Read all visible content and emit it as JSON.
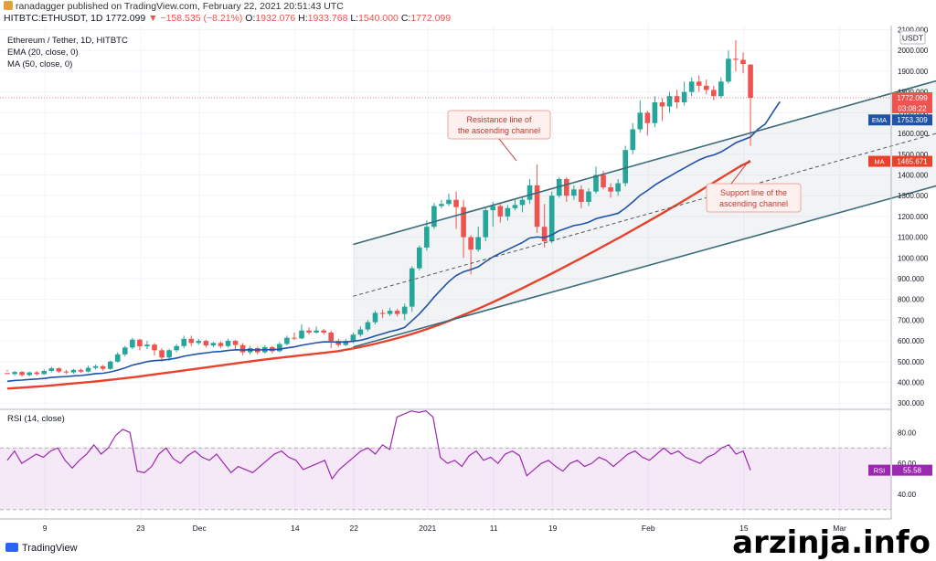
{
  "header": {
    "line1": "ranadagger published on TradingView.com, February 22, 2021 20:51:43 UTC",
    "symbol": "HITBTC:ETHUSDT, 1D",
    "last": "1772.099",
    "change": "▼ −158.535 (−8.21%)",
    "o_label": "O:",
    "o": "1932.076",
    "h_label": "H:",
    "h": "1933.768",
    "l_label": "L:",
    "l": "1540.000",
    "c_label": "C:",
    "c": "1772.099"
  },
  "legend": {
    "title": "Ethereum / Tether, 1D, HITBTC",
    "ema": "EMA (20, close, 0)",
    "ma": "MA (50, close, 0)",
    "rsi": "RSI (14, close)"
  },
  "currency": "USDT",
  "annotations": {
    "resistance": [
      "Resistance line of",
      "the ascending channel"
    ],
    "support": [
      "Support line of the",
      "ascending channel"
    ]
  },
  "price_tags": {
    "last": "1772.099",
    "countdown": "03:08:22",
    "ema_label": "EMA",
    "ema": "1753.309",
    "ma_label": "MA",
    "ma": "1465.671",
    "rsi_label": "RSI",
    "rsi": "55.58"
  },
  "chart_data": {
    "type": "candlestick",
    "x_ticks": [
      "9",
      "23",
      "Dec",
      "14",
      "22",
      "2021",
      "11",
      "19",
      "Feb",
      "15",
      "Mar"
    ],
    "y_ticks": [
      "300.000",
      "400.000",
      "500.000",
      "600.000",
      "700.000",
      "800.000",
      "900.000",
      "1000.000",
      "1100.000",
      "1200.000",
      "1300.000",
      "1400.000",
      "1500.000",
      "1600.000",
      "1700.000",
      "1800.000",
      "1900.000",
      "2000.000",
      "2100.000"
    ],
    "y_range": [
      270,
      2120
    ],
    "rsi_ticks": [
      "40.00",
      "60.00",
      "80.00"
    ],
    "rsi_range": [
      24,
      95
    ],
    "rsi_band": [
      30,
      70
    ],
    "colors": {
      "up": "#26a69a",
      "down": "#ef5350",
      "ema": "#1e53a8",
      "ma": "#e8412c",
      "rsi": "#9c27b0",
      "channel": "#3a6b78"
    },
    "candles": [
      [
        445,
        440,
        452,
        460
      ],
      [
        440,
        450,
        432,
        455
      ],
      [
        450,
        435,
        428,
        455
      ],
      [
        435,
        448,
        430,
        452
      ],
      [
        448,
        440,
        433,
        455
      ],
      [
        440,
        455,
        436,
        462
      ],
      [
        455,
        468,
        448,
        475
      ],
      [
        468,
        452,
        445,
        472
      ],
      [
        452,
        448,
        440,
        460
      ],
      [
        448,
        460,
        442,
        465
      ],
      [
        460,
        452,
        445,
        466
      ],
      [
        452,
        470,
        448,
        480
      ],
      [
        470,
        478,
        462,
        486
      ],
      [
        478,
        465,
        456,
        484
      ],
      [
        465,
        500,
        460,
        505
      ],
      [
        500,
        535,
        495,
        545
      ],
      [
        535,
        568,
        525,
        576
      ],
      [
        568,
        606,
        560,
        615
      ],
      [
        606,
        574,
        555,
        610
      ],
      [
        574,
        582,
        560,
        600
      ],
      [
        582,
        555,
        530,
        590
      ],
      [
        555,
        520,
        500,
        565
      ],
      [
        520,
        555,
        505,
        562
      ],
      [
        555,
        575,
        545,
        585
      ],
      [
        575,
        610,
        565,
        625
      ],
      [
        610,
        590,
        575,
        625
      ],
      [
        590,
        600,
        582,
        610
      ],
      [
        600,
        578,
        568,
        605
      ],
      [
        578,
        590,
        570,
        595
      ],
      [
        590,
        575,
        565,
        598
      ],
      [
        575,
        600,
        570,
        610
      ],
      [
        600,
        580,
        560,
        605
      ],
      [
        580,
        545,
        530,
        590
      ],
      [
        545,
        565,
        535,
        575
      ],
      [
        565,
        545,
        535,
        572
      ],
      [
        545,
        570,
        538,
        580
      ],
      [
        570,
        550,
        540,
        575
      ],
      [
        550,
        585,
        545,
        595
      ],
      [
        585,
        615,
        578,
        625
      ],
      [
        615,
        612,
        605,
        640
      ],
      [
        612,
        650,
        608,
        680
      ],
      [
        650,
        640,
        630,
        665
      ],
      [
        640,
        650,
        635,
        670
      ],
      [
        650,
        640,
        630,
        658
      ],
      [
        640,
        600,
        565,
        650
      ],
      [
        600,
        580,
        570,
        610
      ],
      [
        580,
        600,
        575,
        610
      ],
      [
        600,
        630,
        590,
        640
      ],
      [
        630,
        655,
        620,
        670
      ],
      [
        655,
        690,
        645,
        700
      ],
      [
        690,
        735,
        680,
        745
      ],
      [
        735,
        730,
        710,
        750
      ],
      [
        730,
        745,
        720,
        760
      ],
      [
        745,
        730,
        718,
        755
      ],
      [
        730,
        765,
        700,
        780
      ],
      [
        765,
        950,
        740,
        960
      ],
      [
        950,
        1050,
        940,
        1060
      ],
      [
        1050,
        1150,
        1035,
        1180
      ],
      [
        1150,
        1250,
        1140,
        1265
      ],
      [
        1250,
        1260,
        1240,
        1280
      ],
      [
        1260,
        1280,
        1250,
        1310
      ],
      [
        1280,
        1245,
        1140,
        1320
      ],
      [
        1245,
        1100,
        1000,
        1280
      ],
      [
        1100,
        1040,
        920,
        1110
      ],
      [
        1040,
        1100,
        1030,
        1150
      ],
      [
        1100,
        1230,
        1080,
        1240
      ],
      [
        1230,
        1250,
        1150,
        1270
      ],
      [
        1250,
        1200,
        1170,
        1260
      ],
      [
        1200,
        1240,
        1180,
        1255
      ],
      [
        1240,
        1255,
        1230,
        1280
      ],
      [
        1255,
        1280,
        1220,
        1290
      ],
      [
        1280,
        1350,
        1260,
        1380
      ],
      [
        1350,
        1150,
        1120,
        1450
      ],
      [
        1150,
        1080,
        1050,
        1260
      ],
      [
        1080,
        1300,
        1070,
        1320
      ],
      [
        1300,
        1380,
        1290,
        1390
      ],
      [
        1380,
        1300,
        1270,
        1390
      ],
      [
        1300,
        1330,
        1280,
        1350
      ],
      [
        1330,
        1270,
        1240,
        1350
      ],
      [
        1270,
        1320,
        1250,
        1335
      ],
      [
        1320,
        1400,
        1310,
        1440
      ],
      [
        1400,
        1340,
        1330,
        1420
      ],
      [
        1340,
        1320,
        1290,
        1360
      ],
      [
        1320,
        1360,
        1300,
        1380
      ],
      [
        1360,
        1520,
        1345,
        1540
      ],
      [
        1520,
        1620,
        1500,
        1650
      ],
      [
        1620,
        1700,
        1605,
        1760
      ],
      [
        1700,
        1650,
        1590,
        1710
      ],
      [
        1650,
        1750,
        1630,
        1780
      ],
      [
        1750,
        1730,
        1660,
        1770
      ],
      [
        1730,
        1780,
        1700,
        1800
      ],
      [
        1780,
        1750,
        1720,
        1810
      ],
      [
        1750,
        1800,
        1735,
        1850
      ],
      [
        1800,
        1850,
        1780,
        1870
      ],
      [
        1850,
        1830,
        1800,
        1880
      ],
      [
        1830,
        1810,
        1790,
        1860
      ],
      [
        1810,
        1780,
        1760,
        1830
      ],
      [
        1780,
        1850,
        1770,
        1870
      ],
      [
        1850,
        1960,
        1840,
        2000
      ],
      [
        1960,
        1955,
        1900,
        2050
      ],
      [
        1955,
        1935,
        1890,
        1990
      ],
      [
        1932.076,
        1772.099,
        1540,
        1933.768
      ]
    ],
    "ema": [
      405,
      409,
      411,
      414,
      416,
      419,
      424,
      426,
      428,
      431,
      433,
      437,
      442,
      444,
      450,
      459,
      470,
      483,
      491,
      500,
      505,
      507,
      511,
      517,
      526,
      532,
      538,
      542,
      547,
      549,
      554,
      557,
      556,
      557,
      556,
      558,
      557,
      560,
      566,
      571,
      579,
      585,
      591,
      595,
      595,
      594,
      595,
      598,
      603,
      612,
      624,
      634,
      645,
      653,
      665,
      697,
      730,
      769,
      811,
      849,
      886,
      915,
      933,
      944,
      957,
      982,
      1005,
      1023,
      1040,
      1057,
      1074,
      1096,
      1101,
      1098,
      1111,
      1131,
      1143,
      1156,
      1162,
      1172,
      1189,
      1198,
      1206,
      1215,
      1240,
      1270,
      1302,
      1325,
      1351,
      1373,
      1393,
      1414,
      1433,
      1453,
      1472,
      1487,
      1496,
      1511,
      1532,
      1555,
      1569,
      1583,
      1620,
      1645,
      1700,
      1753.309
    ],
    "ma": [
      370,
      373,
      376,
      379,
      382,
      386,
      390,
      394,
      398,
      402,
      406,
      411,
      416,
      421,
      426,
      432,
      438,
      444,
      450,
      456,
      462,
      468,
      474,
      480,
      486,
      492,
      498,
      504,
      510,
      515,
      520,
      525,
      530,
      535,
      540,
      545,
      550,
      558,
      566,
      575,
      585,
      596,
      607,
      619,
      632,
      646,
      661,
      677,
      694,
      712,
      730,
      749,
      768,
      788,
      809,
      830,
      851,
      873,
      895,
      917,
      940,
      963,
      986,
      1009,
      1033,
      1057,
      1081,
      1105,
      1130,
      1155,
      1180,
      1205,
      1231,
      1257,
      1283,
      1310,
      1337,
      1364,
      1391,
      1418,
      1445,
      1465.671
    ],
    "rsi": [
      62,
      68,
      60,
      63,
      66,
      64,
      68,
      70,
      62,
      57,
      62,
      66,
      72,
      66,
      70,
      78,
      82,
      80,
      55,
      54,
      58,
      66,
      70,
      63,
      60,
      65,
      68,
      64,
      62,
      66,
      60,
      54,
      58,
      56,
      54,
      58,
      62,
      66,
      68,
      64,
      62,
      56,
      58,
      60,
      62,
      50,
      56,
      60,
      64,
      68,
      70,
      66,
      72,
      69,
      90,
      92,
      94,
      93,
      94,
      90,
      64,
      60,
      62,
      58,
      65,
      68,
      62,
      64,
      60,
      66,
      68,
      65,
      52,
      56,
      60,
      62,
      58,
      55,
      60,
      62,
      58,
      60,
      64,
      62,
      58,
      62,
      66,
      68,
      64,
      62,
      66,
      70,
      66,
      68,
      64,
      62,
      60,
      64,
      66,
      70,
      72,
      66,
      68,
      55.58
    ],
    "channel": {
      "resistance": [
        [
          0,
          1065
        ],
        [
          105,
          2110
        ]
      ],
      "support": [
        [
          0,
          570
        ],
        [
          105,
          1600
        ]
      ],
      "midline": [
        [
          0,
          815
        ],
        [
          105,
          1855
        ]
      ]
    }
  }
}
